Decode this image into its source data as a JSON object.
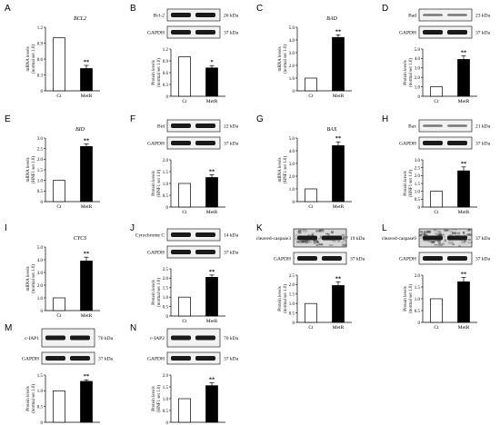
{
  "panels": [
    {
      "id": "A",
      "letter": "A",
      "gene": "BCL2",
      "ylabel": [
        "mRNA levels",
        "(normal set 1.0)"
      ],
      "ylim": [
        0,
        1.2
      ],
      "ticks": [
        "0",
        "0.3",
        "0.6",
        "0.9",
        "1.2"
      ],
      "categories": [
        "Ct",
        "MetR"
      ],
      "values": [
        1.0,
        0.42
      ],
      "errors": [
        0,
        0.06
      ],
      "stars": [
        "",
        "**"
      ],
      "blot": null
    },
    {
      "id": "B",
      "letter": "B",
      "gene": "",
      "ylabel": [
        "Protein levels",
        "(normal set 1.0)"
      ],
      "ylim": [
        0,
        1.2
      ],
      "ticks": [
        "0",
        "0.3",
        "0.6",
        "0.9",
        "1.2"
      ],
      "categories": [
        "Ct",
        "MetR"
      ],
      "values": [
        1.0,
        0.72
      ],
      "errors": [
        0,
        0.06
      ],
      "stars": [
        "",
        "*"
      ],
      "blot": [
        {
          "label": "Bcl-2",
          "kda": "26 kDa",
          "style": "dark"
        },
        {
          "label": "GAPDH",
          "kda": "37 kDa",
          "style": "dark"
        }
      ]
    },
    {
      "id": "C",
      "letter": "C",
      "gene": "BAD",
      "ylabel": [
        "mRNA levels",
        "(normal set 1.0)"
      ],
      "ylim": [
        0,
        5
      ],
      "ticks": [
        "0",
        "1.0",
        "2.0",
        "3.0",
        "4.0",
        "5.0"
      ],
      "categories": [
        "Ct",
        "MetR"
      ],
      "values": [
        1.0,
        4.2
      ],
      "errors": [
        0,
        0.2
      ],
      "stars": [
        "",
        "**"
      ],
      "blot": null
    },
    {
      "id": "D",
      "letter": "D",
      "gene": "",
      "ylabel": [
        "Protein levels",
        "(normal set 1.0)"
      ],
      "ylim": [
        0,
        5
      ],
      "ticks": [
        "0",
        "1.0",
        "2.0",
        "3.0",
        "4.0",
        "5.0"
      ],
      "categories": [
        "Ct",
        "MetR"
      ],
      "values": [
        1.0,
        3.9
      ],
      "errors": [
        0,
        0.4
      ],
      "stars": [
        "",
        "**"
      ],
      "blot": [
        {
          "label": "Bad",
          "kda": "23 kDa",
          "style": "light"
        },
        {
          "label": "GAPDH",
          "kda": "37 kDa",
          "style": "dark"
        }
      ]
    },
    {
      "id": "E",
      "letter": "E",
      "gene": "BID",
      "ylabel": [
        "mRNA levels",
        "(HNF1 set 1.0)"
      ],
      "ylim": [
        0,
        3
      ],
      "ticks": [
        "0",
        "0.5",
        "1.0",
        "1.5",
        "2.0",
        "2.5",
        "3.0"
      ],
      "categories": [
        "Ct",
        "MetR"
      ],
      "values": [
        1.0,
        2.6
      ],
      "errors": [
        0,
        0.12
      ],
      "stars": [
        "",
        "**"
      ],
      "blot": null
    },
    {
      "id": "F",
      "letter": "F",
      "gene": "",
      "ylabel": [
        "Protein levels",
        "(HNF1 set 1.0)"
      ],
      "ylim": [
        0,
        2
      ],
      "ticks": [
        "0",
        "0.5",
        "1.0",
        "1.5",
        "2.0"
      ],
      "categories": [
        "Ct",
        "MetR"
      ],
      "values": [
        1.0,
        1.25
      ],
      "errors": [
        0,
        0.12
      ],
      "stars": [
        "",
        "**"
      ],
      "blot": [
        {
          "label": "Bid",
          "kda": "22 kDa",
          "style": "dark"
        },
        {
          "label": "GAPDH",
          "kda": "37 kDa",
          "style": "dark"
        }
      ]
    },
    {
      "id": "G",
      "letter": "G",
      "gene": "BAX",
      "ylabel": [
        "mRNA levels",
        "(HNF1 set 1.0)"
      ],
      "ylim": [
        0,
        5
      ],
      "ticks": [
        "0",
        "1.0",
        "2.0",
        "3.0",
        "4.0",
        "5.0"
      ],
      "categories": [
        "Ct",
        "MetR"
      ],
      "values": [
        1.0,
        4.4
      ],
      "errors": [
        0,
        0.3
      ],
      "stars": [
        "",
        "**"
      ],
      "blot": null
    },
    {
      "id": "H",
      "letter": "H",
      "gene": "",
      "ylabel": [
        "Protein levels",
        "(HNF1 set 1.0)"
      ],
      "ylim": [
        0,
        3
      ],
      "ticks": [
        "0",
        "0.5",
        "1.0",
        "1.5",
        "2.0",
        "2.5",
        "3.0"
      ],
      "categories": [
        "Ct",
        "MetR"
      ],
      "values": [
        1.0,
        2.3
      ],
      "errors": [
        0,
        0.25
      ],
      "stars": [
        "",
        "**"
      ],
      "blot": [
        {
          "label": "Bax",
          "kda": "21 kDa",
          "style": "light"
        },
        {
          "label": "GAPDH",
          "kda": "37 kDa",
          "style": "dark"
        }
      ]
    },
    {
      "id": "I",
      "letter": "I",
      "gene": "CYCS",
      "ylabel": [
        "mRNA levels",
        "(normal set 1.0)"
      ],
      "ylim": [
        0,
        5
      ],
      "ticks": [
        "0",
        "1.0",
        "2.0",
        "3.0",
        "4.0",
        "5.0"
      ],
      "categories": [
        "Ct",
        "MetR"
      ],
      "values": [
        1.0,
        3.9
      ],
      "errors": [
        0,
        0.3
      ],
      "stars": [
        "",
        "**"
      ],
      "blot": null
    },
    {
      "id": "J",
      "letter": "J",
      "gene": "",
      "ylabel": [
        "Protein levels",
        "(normal set 1.0)"
      ],
      "ylim": [
        0,
        2.5
      ],
      "ticks": [
        "0",
        "0.5",
        "1.0",
        "1.5",
        "2.0",
        "2.5"
      ],
      "categories": [
        "Ct",
        "MetR"
      ],
      "values": [
        1.0,
        2.05
      ],
      "errors": [
        0,
        0.12
      ],
      "stars": [
        "",
        "**"
      ],
      "blot": [
        {
          "label": "Cytochrome C",
          "kda": "14 kDa",
          "style": "dark"
        },
        {
          "label": "GAPDH",
          "kda": "37 kDa",
          "style": "dark"
        }
      ]
    },
    {
      "id": "K",
      "letter": "K",
      "gene": "",
      "ylabel": [
        "Protein levels",
        "(normal set 1.0)"
      ],
      "ylim": [
        0,
        2.5
      ],
      "ticks": [
        "0",
        "0.5",
        "1.0",
        "1.5",
        "2.0",
        "2.5"
      ],
      "categories": [
        "Ct",
        "MetR"
      ],
      "values": [
        1.0,
        1.95
      ],
      "errors": [
        0,
        0.2
      ],
      "stars": [
        "",
        "**"
      ],
      "blot": [
        {
          "label": "cleaved-caspase3",
          "kda": "19 kDa",
          "style": "noisy",
          "tall": true
        },
        {
          "label": "GAPDH",
          "kda": "37 kDa",
          "style": "dark"
        }
      ]
    },
    {
      "id": "L",
      "letter": "L",
      "gene": "",
      "ylabel": [
        "Protein levels",
        "(normal set 1.0)"
      ],
      "ylim": [
        0,
        2
      ],
      "ticks": [
        "0",
        "0.5",
        "1.0",
        "1.5",
        "2.0"
      ],
      "categories": [
        "Ct",
        "MetR"
      ],
      "values": [
        1.0,
        1.72
      ],
      "errors": [
        0,
        0.18
      ],
      "stars": [
        "",
        "**"
      ],
      "blot": [
        {
          "label": "cleaved-caspase9",
          "kda": "37 kDa",
          "style": "noisy",
          "tall": true
        },
        {
          "label": "GAPDH",
          "kda": "37 kDa",
          "style": "dark"
        }
      ]
    },
    {
      "id": "M",
      "letter": "M",
      "gene": "",
      "ylabel": [
        "Protein levels",
        "(normal set 1.0)"
      ],
      "ylim": [
        0,
        1.5
      ],
      "ticks": [
        "0",
        "0.5",
        "1.0",
        "1.5"
      ],
      "categories": [
        "Ct",
        "MetR"
      ],
      "values": [
        1.0,
        1.3
      ],
      "errors": [
        0,
        0.05
      ],
      "stars": [
        "",
        "**"
      ],
      "blot": [
        {
          "label": "c-IAP1",
          "kda": "70 kDa",
          "style": "dark",
          "tall": true
        },
        {
          "label": "GAPDH",
          "kda": "37 kDa",
          "style": "dark"
        }
      ]
    },
    {
      "id": "N",
      "letter": "N",
      "gene": "",
      "ylabel": [
        "Protein levels",
        "(HNF1 set 1.0)"
      ],
      "ylim": [
        0,
        2
      ],
      "ticks": [
        "0",
        "0.5",
        "1.0",
        "1.5",
        "2.0"
      ],
      "categories": [
        "Ct",
        "MetR"
      ],
      "values": [
        1.0,
        1.55
      ],
      "errors": [
        0,
        0.12
      ],
      "stars": [
        "",
        "**"
      ],
      "blot": [
        {
          "label": "c-IAP2",
          "kda": "70 kDa",
          "style": "dark",
          "tall": true
        },
        {
          "label": "GAPDH",
          "kda": "37 kDa",
          "style": "dark"
        }
      ]
    }
  ],
  "chart_data": [
    {
      "type": "bar",
      "panel": "A",
      "title": "BCL2",
      "ylabel": "mRNA levels (normal set 1.0)",
      "categories": [
        "Ct",
        "MetR"
      ],
      "values": [
        1.0,
        0.42
      ],
      "ylim": [
        0,
        1.2
      ]
    },
    {
      "type": "bar",
      "panel": "B",
      "title": "",
      "ylabel": "Protein levels (normal set 1.0)",
      "categories": [
        "Ct",
        "MetR"
      ],
      "values": [
        1.0,
        0.72
      ],
      "ylim": [
        0,
        1.2
      ]
    },
    {
      "type": "bar",
      "panel": "C",
      "title": "BAD",
      "ylabel": "mRNA levels (normal set 1.0)",
      "categories": [
        "Ct",
        "MetR"
      ],
      "values": [
        1.0,
        4.2
      ],
      "ylim": [
        0,
        5
      ]
    },
    {
      "type": "bar",
      "panel": "D",
      "title": "",
      "ylabel": "Protein levels (normal set 1.0)",
      "categories": [
        "Ct",
        "MetR"
      ],
      "values": [
        1.0,
        3.9
      ],
      "ylim": [
        0,
        5
      ]
    },
    {
      "type": "bar",
      "panel": "E",
      "title": "BID",
      "ylabel": "mRNA levels (HNF1 set 1.0)",
      "categories": [
        "Ct",
        "MetR"
      ],
      "values": [
        1.0,
        2.6
      ],
      "ylim": [
        0,
        3
      ]
    },
    {
      "type": "bar",
      "panel": "F",
      "title": "",
      "ylabel": "Protein levels (HNF1 set 1.0)",
      "categories": [
        "Ct",
        "MetR"
      ],
      "values": [
        1.0,
        1.25
      ],
      "ylim": [
        0,
        2
      ]
    },
    {
      "type": "bar",
      "panel": "G",
      "title": "BAX",
      "ylabel": "mRNA levels (HNF1 set 1.0)",
      "categories": [
        "Ct",
        "MetR"
      ],
      "values": [
        1.0,
        4.4
      ],
      "ylim": [
        0,
        5
      ]
    },
    {
      "type": "bar",
      "panel": "H",
      "title": "",
      "ylabel": "Protein levels (HNF1 set 1.0)",
      "categories": [
        "Ct",
        "MetR"
      ],
      "values": [
        1.0,
        2.3
      ],
      "ylim": [
        0,
        3
      ]
    },
    {
      "type": "bar",
      "panel": "I",
      "title": "CYCS",
      "ylabel": "mRNA levels (normal set 1.0)",
      "categories": [
        "Ct",
        "MetR"
      ],
      "values": [
        1.0,
        3.9
      ],
      "ylim": [
        0,
        5
      ]
    },
    {
      "type": "bar",
      "panel": "J",
      "title": "",
      "ylabel": "Protein levels (normal set 1.0)",
      "categories": [
        "Ct",
        "MetR"
      ],
      "values": [
        1.0,
        2.05
      ],
      "ylim": [
        0,
        2.5
      ]
    },
    {
      "type": "bar",
      "panel": "K",
      "title": "",
      "ylabel": "Protein levels (normal set 1.0)",
      "categories": [
        "Ct",
        "MetR"
      ],
      "values": [
        1.0,
        1.95
      ],
      "ylim": [
        0,
        2.5
      ]
    },
    {
      "type": "bar",
      "panel": "L",
      "title": "",
      "ylabel": "Protein levels (normal set 1.0)",
      "categories": [
        "Ct",
        "MetR"
      ],
      "values": [
        1.0,
        1.72
      ],
      "ylim": [
        0,
        2
      ]
    },
    {
      "type": "bar",
      "panel": "M",
      "title": "",
      "ylabel": "Protein levels (normal set 1.0)",
      "categories": [
        "Ct",
        "MetR"
      ],
      "values": [
        1.0,
        1.3
      ],
      "ylim": [
        0,
        1.5
      ]
    },
    {
      "type": "bar",
      "panel": "N",
      "title": "",
      "ylabel": "Protein levels (HNF1 set 1.0)",
      "categories": [
        "Ct",
        "MetR"
      ],
      "values": [
        1.0,
        1.55
      ],
      "ylim": [
        0,
        2
      ]
    }
  ]
}
